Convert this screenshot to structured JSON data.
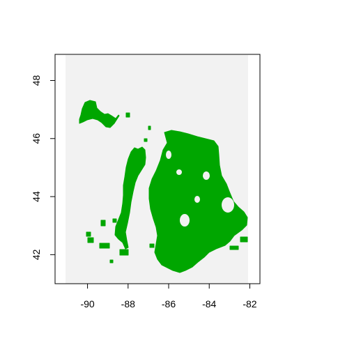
{
  "map": {
    "x_axis": {
      "range": [
        -91.6,
        -81.5
      ],
      "ticks": [
        -90,
        -88,
        -86,
        -84,
        -82
      ],
      "tick_labels": [
        "-90",
        "-88",
        "-86",
        "-84",
        "-82"
      ]
    },
    "y_axis": {
      "range": [
        41.0,
        48.9
      ],
      "ticks": [
        42,
        44,
        46,
        48
      ],
      "tick_labels": [
        "42",
        "44",
        "46",
        "48"
      ]
    },
    "raster_extent": {
      "lon": [
        -91.1,
        -82.1
      ],
      "lat": [
        41.0,
        48.9
      ]
    },
    "colors": {
      "background": "#f2f2f2",
      "fill": "#00a600",
      "frame": "#000000"
    }
  }
}
